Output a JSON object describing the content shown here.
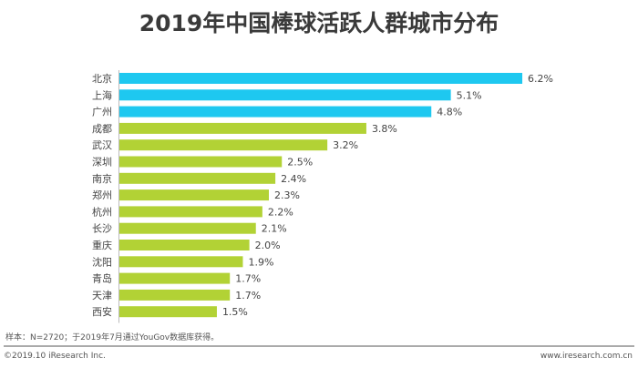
{
  "chart_data": {
    "type": "bar",
    "orientation": "horizontal",
    "title": "2019年中国棒球活跃人群城市分布",
    "categories": [
      "北京",
      "上海",
      "广州",
      "成都",
      "武汉",
      "深圳",
      "南京",
      "郑州",
      "杭州",
      "长沙",
      "重庆",
      "沈阳",
      "青岛",
      "天津",
      "西安"
    ],
    "values": [
      6.2,
      5.1,
      4.8,
      3.8,
      3.2,
      2.5,
      2.4,
      2.3,
      2.2,
      2.1,
      2.0,
      1.9,
      1.7,
      1.7,
      1.5
    ],
    "labels": [
      "6.2%",
      "5.1%",
      "4.8%",
      "3.8%",
      "3.2%",
      "2.5%",
      "2.4%",
      "2.3%",
      "2.2%",
      "2.1%",
      "2.0%",
      "1.9%",
      "1.7%",
      "1.7%",
      "1.5%"
    ],
    "unit": "%",
    "colors": {
      "top3": "#1ec8f0",
      "others": "#b2d235"
    },
    "grid": false
  },
  "footer": {
    "note": "样本：N=2720；于2019年7月通过YouGov数据库获得。",
    "copyright": "©2019.10 iResearch Inc.",
    "site": "www.iresearch.com.cn"
  }
}
